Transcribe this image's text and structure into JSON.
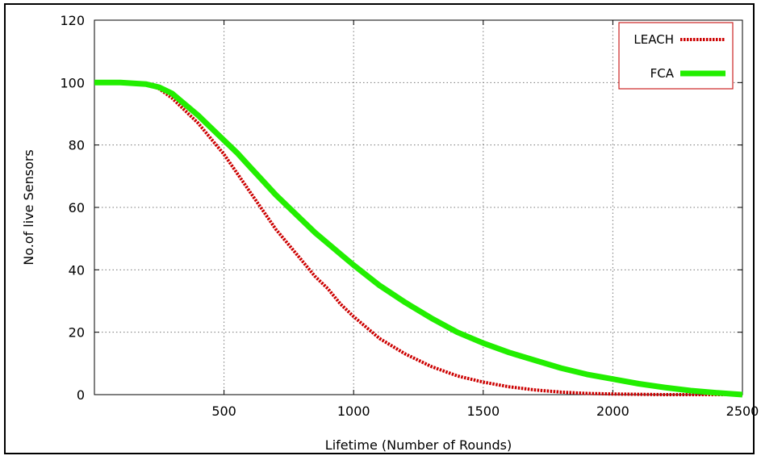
{
  "chart_data": {
    "type": "line",
    "title": "",
    "xlabel": "Lifetime (Number of Rounds)",
    "ylabel": "No.of live Sensors",
    "xlim": [
      0,
      2500
    ],
    "ylim": [
      0,
      120
    ],
    "x_ticks": [
      "500",
      "1000",
      "1500",
      "2000",
      "2500"
    ],
    "y_ticks": [
      "0",
      "20",
      "40",
      "60",
      "80",
      "100",
      "120"
    ],
    "grid": true,
    "legend_position": "top-right",
    "series": [
      {
        "name": "LEACH",
        "color": "#cc0000",
        "style": "dotted",
        "x": [
          0,
          100,
          200,
          250,
          300,
          350,
          400,
          450,
          500,
          550,
          600,
          650,
          700,
          750,
          800,
          850,
          900,
          950,
          1000,
          1100,
          1200,
          1300,
          1400,
          1500,
          1600,
          1700,
          1800,
          1900,
          2000,
          2100,
          2200,
          2300,
          2400,
          2500
        ],
        "y": [
          100,
          100,
          99.5,
          98,
          95,
          91,
          87,
          82,
          77,
          71,
          65,
          59,
          53,
          48,
          43,
          38,
          34,
          29,
          25,
          18,
          13,
          9,
          6,
          4,
          2.5,
          1.5,
          0.8,
          0.4,
          0.2,
          0.1,
          0,
          0,
          0,
          0
        ]
      },
      {
        "name": "FCA",
        "color": "#22ee00",
        "style": "solid",
        "x": [
          0,
          100,
          200,
          250,
          300,
          350,
          400,
          450,
          500,
          550,
          600,
          650,
          700,
          750,
          800,
          850,
          900,
          950,
          1000,
          1100,
          1200,
          1300,
          1400,
          1500,
          1600,
          1700,
          1800,
          1900,
          2000,
          2100,
          2200,
          2300,
          2400,
          2500
        ],
        "y": [
          100,
          100,
          99.5,
          98.5,
          96.5,
          93,
          89.5,
          85.5,
          81.5,
          77.5,
          73,
          68.5,
          64,
          60,
          56,
          52,
          48.5,
          45,
          41.5,
          35,
          29.5,
          24.5,
          20,
          16.5,
          13.5,
          11,
          8.5,
          6.5,
          5,
          3.5,
          2.3,
          1.3,
          0.6,
          0
        ]
      }
    ]
  }
}
